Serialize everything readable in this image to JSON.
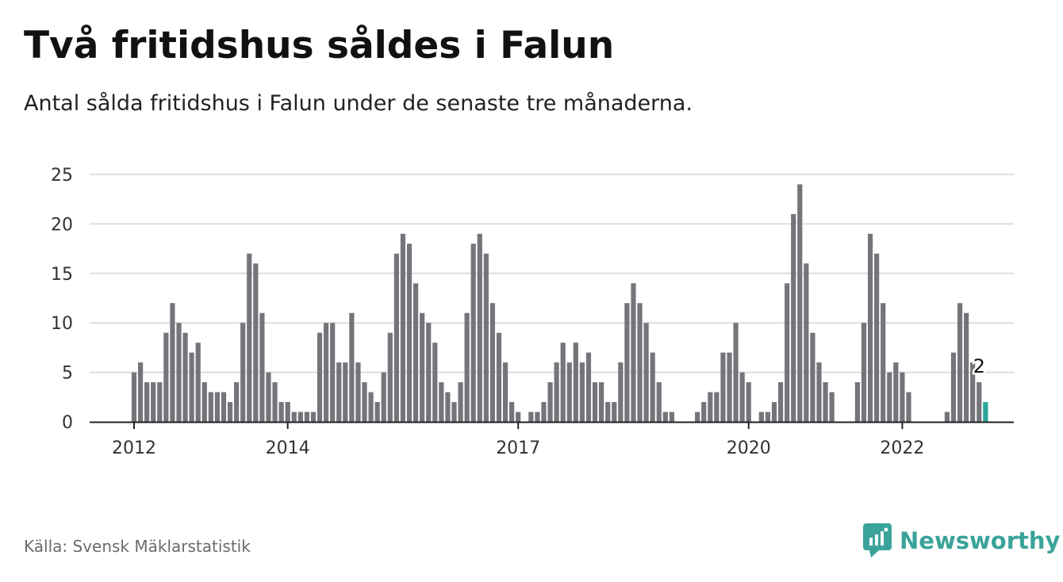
{
  "header": {
    "title": "Två fritidshus såldes i Falun",
    "subtitle": "Antal sålda fritidshus i Falun under de senaste tre månaderna."
  },
  "footer": {
    "source": "Källa: Svensk Mäklarstatistik",
    "brand": "Newsworthy"
  },
  "colors": {
    "bar": "#75747a",
    "highlight": "#2aa59b",
    "grid": "#dddddd",
    "axis": "#222222",
    "brand": "#3aa39a"
  },
  "chart_data": {
    "type": "bar",
    "title": "",
    "xlabel": "",
    "ylabel": "",
    "ylim": [
      0,
      25
    ],
    "yticks": [
      0,
      5,
      10,
      15,
      20,
      25
    ],
    "grid": true,
    "x_labels": [
      {
        "label": "2012",
        "index": 0
      },
      {
        "label": "2014",
        "index": 24
      },
      {
        "label": "2017",
        "index": 60
      },
      {
        "label": "2020",
        "index": 96
      },
      {
        "label": "2022",
        "index": 120
      }
    ],
    "values": [
      5,
      6,
      4,
      4,
      4,
      9,
      12,
      10,
      9,
      7,
      8,
      4,
      3,
      3,
      3,
      2,
      4,
      10,
      17,
      16,
      11,
      5,
      4,
      2,
      2,
      1,
      1,
      1,
      1,
      9,
      10,
      10,
      6,
      6,
      11,
      6,
      4,
      3,
      2,
      5,
      9,
      17,
      19,
      18,
      14,
      11,
      10,
      8,
      4,
      3,
      2,
      4,
      11,
      18,
      19,
      17,
      12,
      9,
      6,
      2,
      1,
      0,
      1,
      1,
      2,
      4,
      6,
      8,
      6,
      8,
      6,
      7,
      4,
      4,
      2,
      2,
      6,
      12,
      14,
      12,
      10,
      7,
      4,
      1,
      1,
      0,
      0,
      0,
      1,
      2,
      3,
      3,
      7,
      7,
      10,
      5,
      4,
      0,
      1,
      1,
      2,
      4,
      14,
      21,
      24,
      16,
      9,
      6,
      4,
      3,
      0,
      0,
      0,
      4,
      10,
      19,
      17,
      12,
      5,
      6,
      5,
      3,
      0,
      0,
      0,
      0,
      0,
      1,
      7,
      12,
      11,
      6,
      4,
      2
    ],
    "highlight_last": 1,
    "annotation": {
      "index": 132,
      "label": "2"
    }
  }
}
